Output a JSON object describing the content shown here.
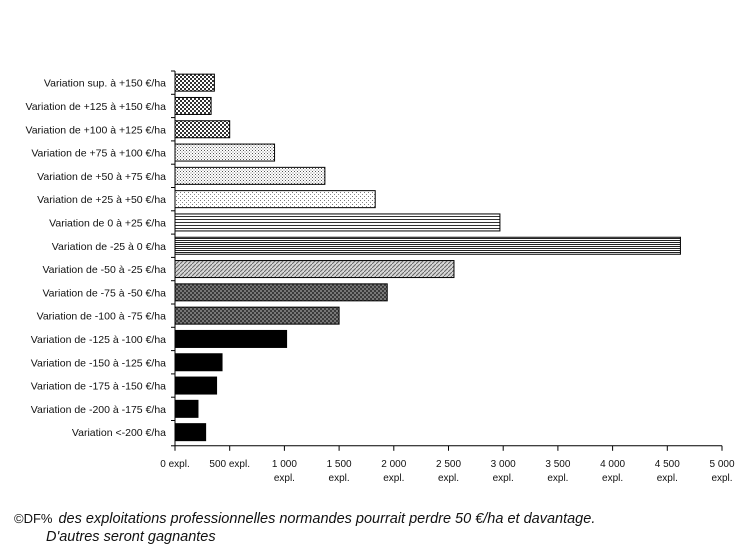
{
  "chart_data": {
    "type": "bar",
    "orientation": "horizontal",
    "categories": [
      "Variation sup. à +150 €/ha",
      "Variation de +125 à +150 €/ha",
      "Variation de +100 à +125 €/ha",
      "Variation de +75 à +100 €/ha",
      "Variation de +50 à +75 €/ha",
      "Variation de +25 à +50 €/ha",
      "Variation de 0 à +25 €/ha",
      "Variation de -25 à 0 €/ha",
      "Variation de -50 à -25 €/ha",
      "Variation de -75 à -50 €/ha",
      "Variation de -100 à -75 €/ha",
      "Variation de -125 à -100 €/ha",
      "Variation de -150 à -125 €/ha",
      "Variation de -175 à -150 €/ha",
      "Variation de -200 à -175 €/ha",
      "Variation <-200 €/ha"
    ],
    "values": [
      360,
      330,
      500,
      910,
      1370,
      1830,
      2970,
      4620,
      2550,
      1940,
      1500,
      1020,
      430,
      380,
      210,
      280
    ],
    "patterns": [
      "checker",
      "checker",
      "checker",
      "dots",
      "dots",
      "dots-light",
      "hlines",
      "hlines-dense",
      "diag",
      "dark-check",
      "dark-check",
      "solid",
      "solid",
      "solid",
      "solid",
      "solid"
    ],
    "xlim": [
      0,
      5000
    ],
    "xticks": [
      {
        "value": 0,
        "label": [
          "0 expl."
        ]
      },
      {
        "value": 500,
        "label": [
          "500 expl."
        ]
      },
      {
        "value": 1000,
        "label": [
          "1 000",
          "expl."
        ]
      },
      {
        "value": 1500,
        "label": [
          "1 500",
          "expl."
        ]
      },
      {
        "value": 2000,
        "label": [
          "2 000",
          "expl."
        ]
      },
      {
        "value": 2500,
        "label": [
          "2 500",
          "expl."
        ]
      },
      {
        "value": 3000,
        "label": [
          "3 000",
          "expl."
        ]
      },
      {
        "value": 3500,
        "label": [
          "3 500",
          "expl."
        ]
      },
      {
        "value": 4000,
        "label": [
          "4 000",
          "expl."
        ]
      },
      {
        "value": 4500,
        "label": [
          "4 500",
          "expl."
        ]
      },
      {
        "value": 5000,
        "label": [
          "5 000",
          "expl."
        ]
      }
    ],
    "grid": false,
    "legend": "none"
  },
  "caption": {
    "mark": "©DF%",
    "line1": " des  exploitations professionnelles normandes pourrait perdre 50 €/ha et davantage.",
    "line2": "D'autres seront gagnantes"
  }
}
